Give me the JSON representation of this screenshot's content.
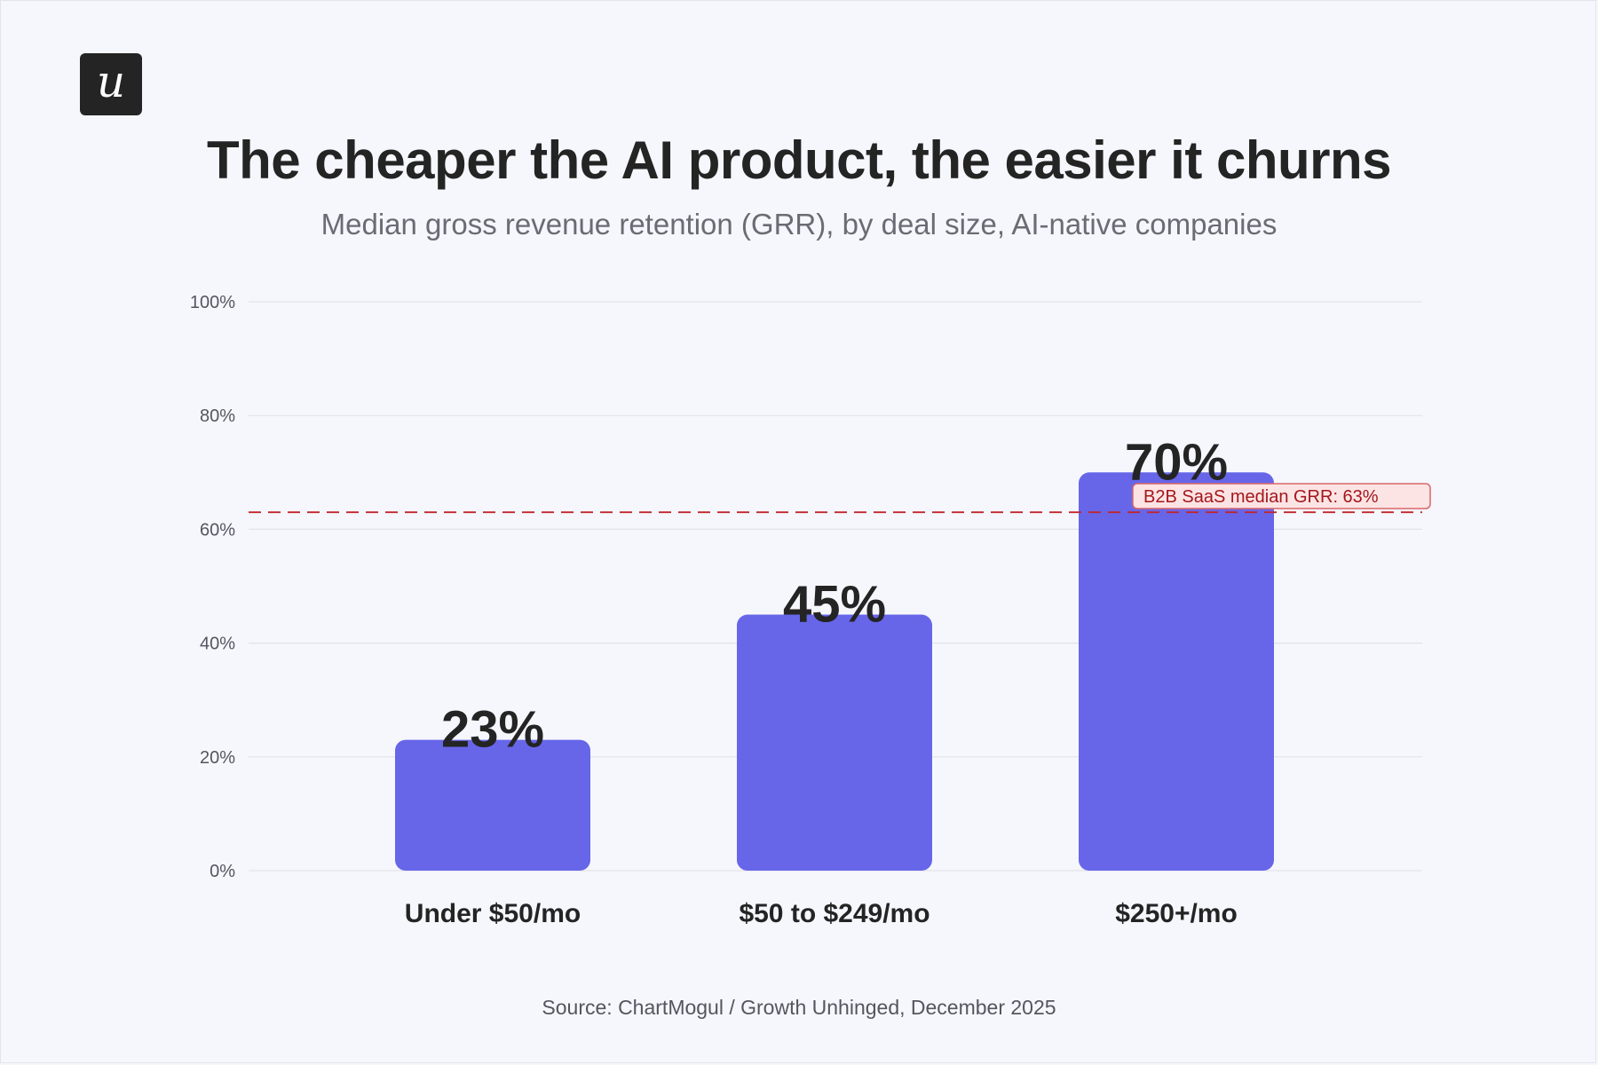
{
  "header": {
    "logo_glyph": "u",
    "title": "The cheaper the AI product, the easier it churns",
    "subtitle": "Median gross revenue retention (GRR), by deal size, AI-native companies"
  },
  "footer": {
    "source": "Source: ChartMogul / Growth Unhinged, December 2025"
  },
  "colors": {
    "bar": "#6766e9",
    "reference_line": "#c0262d",
    "reference_label_bg": "#fde4e4",
    "text_dark": "#242424"
  },
  "chart_data": {
    "type": "bar",
    "categories": [
      "Under $50/mo",
      "$50 to $249/mo",
      "$250+/mo"
    ],
    "values": [
      23,
      45,
      70
    ],
    "value_labels": [
      "23%",
      "45%",
      "70%"
    ],
    "ylim": [
      0,
      100
    ],
    "yticks": [
      0,
      20,
      40,
      60,
      80,
      100
    ],
    "ytick_labels": [
      "0%",
      "20%",
      "40%",
      "60%",
      "80%",
      "100%"
    ],
    "grid": true,
    "reference_line": {
      "value": 63,
      "label": "B2B SaaS median GRR: 63%",
      "style": "dashed"
    }
  }
}
